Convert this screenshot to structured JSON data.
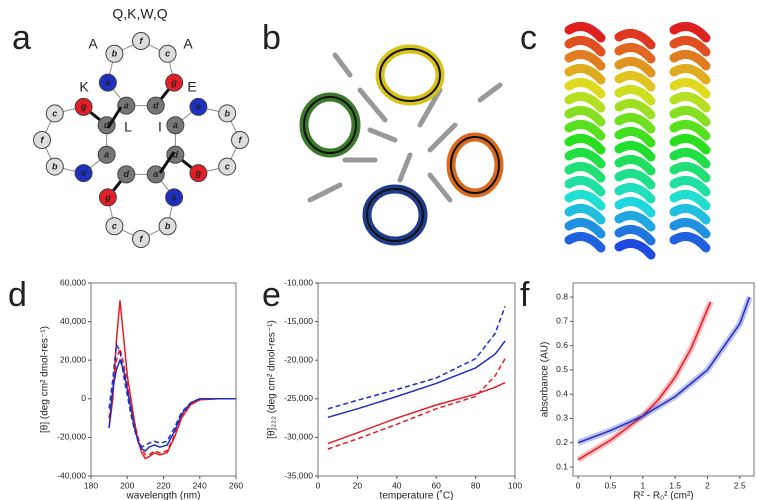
{
  "panel_labels": [
    "a",
    "b",
    "c",
    "d",
    "e",
    "f"
  ],
  "helical_wheel": {
    "header": "Q,K,W,Q",
    "labels": [
      "A",
      "A",
      "K",
      "E",
      "L",
      "I"
    ],
    "letters": [
      "a",
      "b",
      "c",
      "d",
      "e",
      "f",
      "g"
    ]
  },
  "chart_data": [
    {
      "type": "line",
      "xlabel": "wavelength (nm)",
      "ylabel": "[θ] (deg cm² dmol-res⁻¹)",
      "x": [
        190,
        192,
        194,
        196,
        198,
        200,
        202,
        204,
        206,
        208,
        210,
        212,
        215,
        218,
        222,
        226,
        230,
        235,
        240,
        250,
        260
      ],
      "xlim": [
        180,
        260
      ],
      "xticks": [
        180,
        200,
        220,
        240,
        260
      ],
      "ylim": [
        -40000,
        60000
      ],
      "yticks": [
        {
          "value": 60000,
          "label": "60,000"
        },
        {
          "value": 40000,
          "label": "40,000"
        },
        {
          "value": 20000,
          "label": "20,000"
        },
        0,
        {
          "value": -20000,
          "label": "-20,000"
        },
        {
          "value": -40000,
          "label": "-40,000"
        }
      ],
      "series": [
        {
          "color": "#e41e26",
          "dashed": false,
          "values": [
            -15000,
            0,
            30000,
            51000,
            32000,
            12000,
            0,
            -12000,
            -22000,
            -28000,
            -31000,
            -30000,
            -28000,
            -29000,
            -28000,
            -20000,
            -10000,
            -3000,
            -500,
            0,
            0
          ]
        },
        {
          "color": "#e41e26",
          "dashed": true,
          "values": [
            -10000,
            5000,
            20000,
            26000,
            18000,
            8000,
            -2000,
            -12000,
            -20000,
            -26000,
            -29000,
            -29000,
            -27000,
            -28000,
            -27000,
            -19000,
            -9000,
            -3000,
            -500,
            0,
            0
          ]
        },
        {
          "color": "#1f2fbf",
          "dashed": false,
          "values": [
            -15000,
            5000,
            15000,
            20000,
            15000,
            5000,
            -5000,
            -15000,
            -22000,
            -26000,
            -27000,
            -25000,
            -24000,
            -25000,
            -24000,
            -17000,
            -8000,
            -2000,
            0,
            0,
            0
          ]
        },
        {
          "color": "#1f2fbf",
          "dashed": true,
          "values": [
            -5000,
            10000,
            28000,
            25000,
            12000,
            2000,
            -8000,
            -16000,
            -22000,
            -25000,
            -24000,
            -23000,
            -22000,
            -23000,
            -22000,
            -15000,
            -7000,
            -2000,
            0,
            0,
            0
          ]
        }
      ]
    },
    {
      "type": "line",
      "xlabel": "temperature (˚C)",
      "ylabel": "[θ]₂₂₂ (deg cm² dmol-res⁻¹)",
      "x": [
        5,
        20,
        40,
        60,
        80,
        90,
        95
      ],
      "xlim": [
        0,
        100
      ],
      "xticks": [
        0,
        20,
        40,
        60,
        80,
        100
      ],
      "ylim": [
        -35000,
        -10000
      ],
      "yticks": [
        {
          "value": -10000,
          "label": "-10,000"
        },
        {
          "value": -15000,
          "label": "-15,000"
        },
        {
          "value": -20000,
          "label": "-20,000"
        },
        {
          "value": -25000,
          "label": "-25,000"
        },
        {
          "value": -30000,
          "label": "-30,000"
        },
        {
          "value": -35000,
          "label": "-35,000"
        }
      ],
      "series": [
        {
          "color": "#1f2fbf",
          "dashed": true,
          "values": [
            -26300,
            -25200,
            -23800,
            -22300,
            -19800,
            -16500,
            -13000
          ]
        },
        {
          "color": "#1f2fbf",
          "dashed": false,
          "values": [
            -27400,
            -26300,
            -24700,
            -23000,
            -21000,
            -19200,
            -17500
          ]
        },
        {
          "color": "#e41e26",
          "dashed": false,
          "values": [
            -30800,
            -29400,
            -27500,
            -25800,
            -24400,
            -23500,
            -22900
          ]
        },
        {
          "color": "#e41e26",
          "dashed": true,
          "values": [
            -31500,
            -30200,
            -28300,
            -26300,
            -24700,
            -22000,
            -19800
          ]
        }
      ]
    },
    {
      "type": "line",
      "xlabel": "R² - R₀² (cm²)",
      "ylabel": "absorbance (AU)",
      "xlim": [
        -0.08,
        2.72
      ],
      "xticks": [
        0,
        0.5,
        1,
        1.5,
        2,
        2.5
      ],
      "ylim": [
        0.063,
        0.858
      ],
      "yticks": [
        0.1,
        0.2,
        0.3,
        0.4,
        0.5,
        0.6,
        0.7,
        0.8
      ],
      "series": [
        {
          "color": "#e41e26",
          "dashed": false,
          "x": [
            0,
            0.25,
            0.5,
            0.75,
            1,
            1.25,
            1.5,
            1.75,
            2,
            2.05
          ],
          "values": [
            0.13,
            0.17,
            0.21,
            0.26,
            0.31,
            0.38,
            0.47,
            0.59,
            0.75,
            0.78
          ]
        },
        {
          "color": "#1f2fbf",
          "dashed": false,
          "x": [
            0,
            0.5,
            1,
            1.5,
            2,
            2.5,
            2.65
          ],
          "values": [
            0.2,
            0.25,
            0.31,
            0.39,
            0.5,
            0.69,
            0.8
          ]
        }
      ]
    }
  ]
}
